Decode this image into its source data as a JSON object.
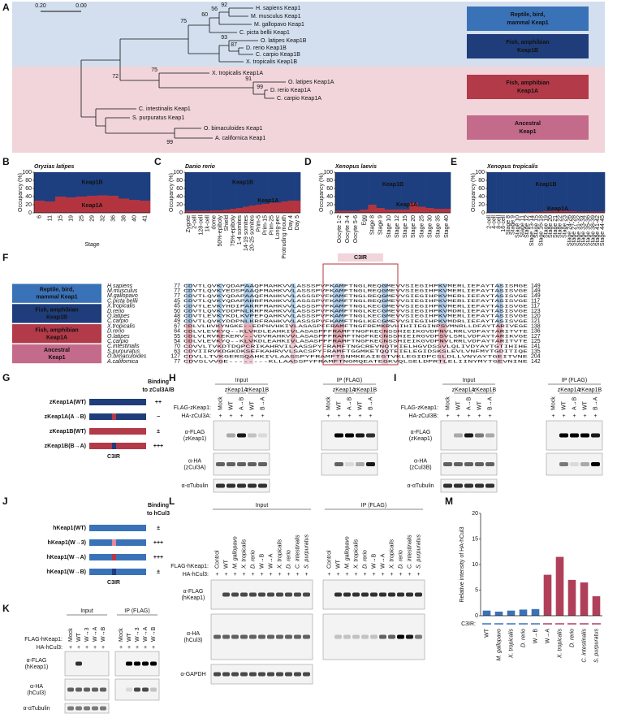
{
  "panel_labels": [
    "A",
    "B",
    "C",
    "D",
    "E",
    "F",
    "G",
    "H",
    "I",
    "J",
    "K",
    "L",
    "M"
  ],
  "tree": {
    "scale_bar": [
      "0.20",
      "0.00"
    ],
    "leaves": [
      "H. sapiens Keap1",
      "M. musculus Keap1",
      "M. gallopavo Keap1",
      "C. picta bellii Keap1",
      "O. latipes Keap1B",
      "D. rerio Keap1B",
      "C. carpio Keap1B",
      "X. tropicalis Keap1B",
      "X. tropicalis Keap1A",
      "O. latipes Keap1A",
      "D. rerio Keap1A",
      "C. carpio Keap1A",
      "C. intestinalis Keap1",
      "S. purpuratus Keap1",
      "O. bimaculoides Keap1",
      "A. californica Keap1"
    ],
    "bootstrap": [
      92,
      56,
      60,
      75,
      93,
      87,
      72,
      75,
      91,
      99,
      99
    ],
    "groups": [
      [
        "Reptile, bird,",
        "mammal Keap1"
      ],
      [
        "Fish, amphibian",
        "Keap1B"
      ],
      [
        "Fish, amphibian",
        "Keap1A"
      ],
      [
        "Ancestral",
        "Keap1"
      ]
    ]
  },
  "chart_data": [
    {
      "type": "bar",
      "stacked": true,
      "title": "Oryzias latipes",
      "ylabel": "Occupancy (%)",
      "xlabel": "Stage",
      "categories": [
        "6",
        "11",
        "15",
        "19",
        "25",
        "29",
        "32",
        "36",
        "38",
        "40",
        "41"
      ],
      "series": [
        {
          "name": "Keap1A",
          "color": "#b3343f",
          "values": [
            30,
            28,
            40,
            38,
            40,
            42,
            43,
            42,
            35,
            32,
            30
          ]
        },
        {
          "name": "Keap1B",
          "color": "#1d3f7f",
          "values": [
            70,
            72,
            60,
            62,
            60,
            58,
            57,
            58,
            65,
            68,
            70
          ]
        }
      ],
      "ylim": [
        0,
        100
      ],
      "yticks": [
        0,
        20,
        40,
        60,
        80,
        100
      ]
    },
    {
      "type": "bar",
      "stacked": true,
      "title": "Danio rerio",
      "ylabel": "Occupancy (%)",
      "categories": [
        "Zygote",
        "2-cell",
        "128-cell",
        "1k-cell",
        "dome",
        "50%-epiboly",
        "Shield",
        "75%-epiboly",
        "1-4 somites",
        "14-19 somites",
        "20-25 somites",
        "Prim-5",
        "Prim-15",
        "Prim-25",
        "Long-pec",
        "Protruding mouth",
        "Day 4",
        "Day 5"
      ],
      "series": [
        {
          "name": "Keap1A",
          "color": "#b3343f",
          "values": [
            5,
            5,
            5,
            5,
            6,
            6,
            8,
            10,
            12,
            15,
            18,
            20,
            22,
            25,
            25,
            28,
            30,
            30
          ]
        },
        {
          "name": "Keap1B",
          "color": "#1d3f7f",
          "values": [
            95,
            95,
            95,
            95,
            94,
            94,
            92,
            90,
            88,
            85,
            82,
            80,
            78,
            75,
            75,
            72,
            70,
            70
          ]
        }
      ],
      "ylim": [
        0,
        100
      ],
      "yticks": [
        0,
        20,
        40,
        60,
        80,
        100
      ]
    },
    {
      "type": "bar",
      "stacked": true,
      "title": "Xenopus laevis",
      "ylabel": "Occupancy (%)",
      "categories": [
        "Oocyte 1-2",
        "Oocyte 3-4",
        "Oocyte 5-6",
        "Egg",
        "Stage 8",
        "Stage 9",
        "Stage 10",
        "Stage 12",
        "Stage 15",
        "Stage 20",
        "Stage 25",
        "Stage 30",
        "Stage 35",
        "Stage 40"
      ],
      "series": [
        {
          "name": "Keap1A",
          "color": "#b3343f",
          "values": [
            5,
            5,
            5,
            8,
            20,
            12,
            8,
            8,
            8,
            25,
            15,
            12,
            10,
            10
          ]
        },
        {
          "name": "Keap1B",
          "color": "#1d3f7f",
          "values": [
            95,
            95,
            95,
            92,
            80,
            88,
            92,
            92,
            92,
            75,
            85,
            88,
            90,
            90
          ]
        }
      ],
      "ylim": [
        0,
        100
      ],
      "yticks": [
        0,
        20,
        40,
        60,
        80,
        100
      ]
    },
    {
      "type": "bar",
      "stacked": true,
      "title": "Xenopus tropicalis",
      "ylabel": "Occupancy (%)",
      "categories": [
        "2-cell",
        "4-cell",
        "8-cell",
        "16-cell",
        "Stage 8",
        "Stage 9",
        "Stage 10",
        "Stage 11",
        "Stage 12",
        "Stage 13-14",
        "Stage 15",
        "Stage 16-18",
        "Stage 19",
        "Stage 20",
        "Stage 21",
        "Stage 22",
        "Stage 23",
        "Stage 24-26",
        "Stage 27-28",
        "Stage 31-32",
        "Stage 33-34",
        "Stage 35-36",
        "Stage 38-39",
        "Stage 41-42",
        "Stage 44-45"
      ],
      "series": [
        {
          "name": "Keap1A",
          "color": "#b3343f",
          "values": [
            1,
            1,
            1,
            1,
            1,
            1,
            1,
            1,
            2,
            2,
            3,
            3,
            4,
            4,
            5,
            5,
            5,
            4,
            4,
            3,
            3,
            3,
            3,
            3,
            3
          ]
        },
        {
          "name": "Keap1B",
          "color": "#1d3f7f",
          "values": [
            99,
            99,
            99,
            99,
            99,
            99,
            99,
            99,
            98,
            98,
            97,
            97,
            96,
            96,
            95,
            95,
            95,
            96,
            96,
            97,
            97,
            97,
            97,
            97,
            97
          ]
        }
      ],
      "ylim": [
        0,
        100
      ],
      "yticks": [
        0,
        20,
        40,
        60,
        80,
        100
      ]
    },
    {
      "type": "bar",
      "ylabel": "Relative intensity of HA-hCul3",
      "xlabel": "C3IR:",
      "categories": [
        "WT",
        "M. gallopavo",
        "X. tropicalis",
        "D. rerio",
        "W→B",
        "W→A",
        "X. tropicalis",
        "D. rerio",
        "C. intestinalis",
        "S. purpuratus"
      ],
      "values": [
        1,
        0.8,
        1,
        1.2,
        1.3,
        8,
        11.5,
        7,
        6.5,
        3.8
      ],
      "colors": [
        "#3a72b8",
        "#3a72b8",
        "#3a72b8",
        "#3a72b8",
        "#3a72b8",
        "#b0405a",
        "#b0405a",
        "#b0405a",
        "#b0405a",
        "#b0405a"
      ],
      "ylim": [
        0,
        20
      ],
      "yticks": [
        0,
        5,
        10,
        15,
        20
      ]
    }
  ],
  "alignment": {
    "region": "C3IR",
    "rows": [
      {
        "name": "H.sapiens",
        "start": 77,
        "seq": "CDVTLQVKYQDAPAAQFMAHKVVLASSSPVFKAMFTNGLREQGMEVVSIEGIHPKVMERLIEFAYTASISMGE",
        "end": 149
      },
      {
        "name": "M.musculus",
        "start": 77,
        "seq": "CDVTLQVKYEDSPAAQFMAHKVVLASSSPVFKAMFTNGLREQGMEVVSIEGIHPKVMERLIEFAYTASISVGE",
        "end": 149
      },
      {
        "name": "M.gallopavo",
        "start": 77,
        "seq": "CDVTLQVKYQDAPAAQFMAHKVVLASSSPVFKAMFTNGLREQGMEVVSIEGIHPKVMERLIEFAYTASISVGE",
        "end": 149
      },
      {
        "name": "C.picta bellii",
        "start": 45,
        "seq": "CDVTLQVKYQDAPAHRFMAHKVVLASSSPVFKAMFTNGLREQGMEVVSIEGIHPKVMERLIEFAYTASISVGE",
        "end": 117
      },
      {
        "name": "X.tropicalis",
        "start": 45,
        "seq": "CDVTLEVKYHDIPAKRFMAHKVVLASSSPVFKAMFTNGLKECGMEVVSIEGIHPKVMERLIEFAYTASISVGE",
        "end": 117
      },
      {
        "name": "D.rerio",
        "start": 50,
        "seq": "CDVTLQVKYDDPNLKRFRAHKVVLASSSPVFKAMFTNGLKECGMEVVSIEGIHPKVMDRLIEFAYTASISVGE",
        "end": 123
      },
      {
        "name": "O.latipes",
        "start": 48,
        "seq": "CDVTLEVKYKDLKVPEFQAHKVVLASSSPVFKAMFTNGLKECGMEVVSIEGIHPKVMERLIEFAYTASISVGE",
        "end": 120
      },
      {
        "name": "C.carpio",
        "start": 49,
        "seq": "CDVTLQVKYDDPNLKRFRAHKVVLASSSPVFKAMFTNGLKECGMEVVSIEGIHPKVMDRLIEFAYTASISVGE",
        "end": 121
      },
      {
        "name": "X.tropicalis",
        "start": 67,
        "seq": "CDLVLHVKYNGKE--EDPHVHKIVLASASPFFRAMFTNGFREMKRVHIHIIEGINPSVMNRLLDFAYTARIVEGE",
        "end": 138
      },
      {
        "name": "D.rerio",
        "start": 64,
        "seq": "CDLVLEVKYQ--KLVKDLEAHKIVLASASPFFRAMFTNGFKECNSSHIEIKGVDPNVLRRLVDFAYTARITVTE",
        "end": 136
      },
      {
        "name": "O.latipes",
        "start": 55,
        "seq": "CDLVLRVKEKERV--VDVRAHKVVLASASPFFRAMFTNGFKECNSSHIEIRGVDPSVLSRLVDFAYTARIKVGE",
        "end": 127
      },
      {
        "name": "C.carpio",
        "start": 54,
        "seq": "CDLVLEVKYQ--KLVKDLEAHKIVLASASPFFRAMFTNGFKECNSSHIEIKGVDPNVLRRLVDFAYTARITVTE",
        "end": 125
      },
      {
        "name": "C.intestinalis",
        "start": 70,
        "seq": "CDVVLTVKDTDQPCRIKAHRVILAASSPYFRAMFTNGCREVNQTKIELHGVDSSVLQLIVDYAYTGTIHIHE",
        "end": 141
      },
      {
        "name": "S.purpuratus",
        "start": 63,
        "seq": "CDVIIRVKDGKDKSEFKAHRVVLSACSPYFRAMFTGGMKETQQTEIELEGIDSKSLEVLVNFMYTGDITIQE",
        "end": 135
      },
      {
        "name": "O.bimaculoides",
        "start": 127,
        "seq": "CDVLLTVKGERSQAHKIVLAASSPYFRAMFTSNMKEAIEGTVKLEGIDPCSLDLLVNYAYTGEITVNE",
        "end": 204
      },
      {
        "name": "A.californica",
        "start": 77,
        "seq": "CDVSLVVGE--------KLLAASSPYFRAMFTNGMQEATEGKVQLSELDPRTLELIINYMYTGEVNINE",
        "end": 142
      }
    ]
  },
  "domains": [
    {
      "title": [
        "Binding",
        "to zCul3A/B"
      ],
      "region": "C3IR",
      "rows": [
        {
          "label": "zKeap1A(WT)",
          "binding": "++"
        },
        {
          "label": "zKeap1A(A→B)",
          "binding": "−"
        },
        {
          "label": "zKeap1B(WT)",
          "binding": "±"
        },
        {
          "label": "zKeap1B(B→A)",
          "binding": "+++"
        }
      ]
    },
    {
      "title": [
        "Binding",
        "to hCul3"
      ],
      "region": "C3IR",
      "rows": [
        {
          "label": "hKeap1(WT)",
          "binding": "±"
        },
        {
          "label": "hKeap1(W→3)",
          "binding": "+++"
        },
        {
          "label": "hKeap1(W→A)",
          "binding": "+++"
        },
        {
          "label": "hKeap1(W→B)",
          "binding": "±"
        }
      ]
    }
  ],
  "blots": {
    "H": {
      "input": "Input",
      "ip": "IP (FLAG)",
      "groups": [
        "zKeap1A",
        "zKeap1B"
      ],
      "construct": "FLAG-zKeap1:",
      "partner": "HA-zCul3A:",
      "lanes": [
        "Mock",
        "WT",
        "A→B",
        "WT",
        "B→A"
      ],
      "signs": [
        "+",
        "+",
        "+",
        "+",
        "+"
      ],
      "rows": [
        [
          "α-FLAG",
          "(zKeap1)"
        ],
        [
          "α-HA",
          "(zCul3A)"
        ],
        [
          "α-αTubulin"
        ]
      ]
    },
    "I": {
      "input": "Input",
      "ip": "IP (FLAG)",
      "groups": [
        "zKeap1A",
        "zKeap1B"
      ],
      "construct": "FLAG-zKeap1:",
      "partner": "HA-zCul3B:",
      "lanes": [
        "Mock",
        "WT",
        "A→B",
        "WT",
        "B→A"
      ],
      "signs": [
        "+",
        "+",
        "+",
        "+",
        "+"
      ],
      "rows": [
        [
          "α-FLAG",
          "(zKeap1)"
        ],
        [
          "α-HA",
          "(zCul3B)"
        ],
        [
          "α-αTubulin"
        ]
      ]
    },
    "K": {
      "input": "Input",
      "ip": "IP (FLAG)",
      "construct": "FLAG-hKeap1:",
      "partner": "HA-hCul3:",
      "lanes": [
        "Mock",
        "WT",
        "W→3",
        "W→A",
        "W→B"
      ],
      "signs": [
        "+",
        "+",
        "+",
        "+",
        "+"
      ],
      "rows": [
        [
          "α-FLAG",
          "(hKeap1)"
        ],
        [
          "α-HA",
          "(hCul3)"
        ],
        [
          "α-αTubulin"
        ]
      ]
    },
    "L": {
      "input": "Input",
      "ip": "IP (FLAG)",
      "construct": "FLAG-hKeap1:",
      "partner": "HA-hCul3:",
      "lanes": [
        "Control",
        "WT",
        "M. gallopavo",
        "X. tropicalis",
        "D. rerio",
        "W→B",
        "W→A",
        "X. tropicalis",
        "D. rerio",
        "C. intestinalis",
        "S. purpuratus"
      ],
      "signs": [
        "+",
        "+",
        "+",
        "+",
        "+",
        "+",
        "+",
        "+",
        "+",
        "+",
        "+"
      ],
      "rows": [
        [
          "α-FLAG",
          "(hKeap1)"
        ],
        [
          "α-HA",
          "(hCul3)"
        ],
        [
          "α-GAPDH"
        ]
      ]
    }
  }
}
